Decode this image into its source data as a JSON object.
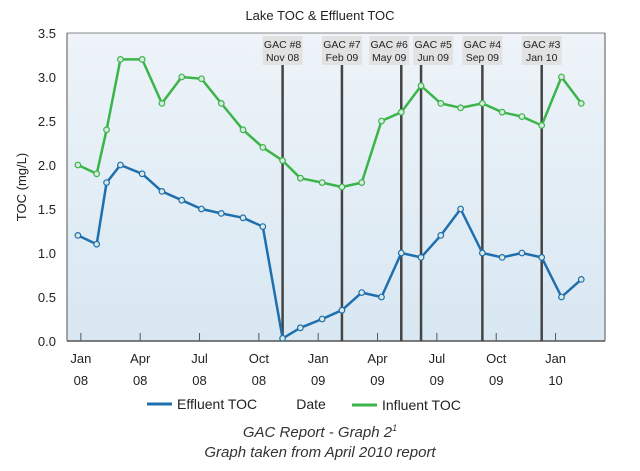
{
  "chart_data": {
    "type": "line",
    "title": "Lake TOC & Effluent TOC",
    "xlabel": "Date",
    "ylabel": "TOC (mg/L)",
    "ylim": [
      0,
      3.5
    ],
    "yticks": [
      "0.0",
      "0.5",
      "1.0",
      "1.5",
      "2.0",
      "2.5",
      "3.0",
      "3.5"
    ],
    "x_units": "months since Jan 2008",
    "xlim": [
      -0.7,
      26.5
    ],
    "xticks": [
      {
        "m": 0,
        "l1": "Jan",
        "l2": "08"
      },
      {
        "m": 3,
        "l1": "Apr",
        "l2": "08"
      },
      {
        "m": 6,
        "l1": "Jul",
        "l2": "08"
      },
      {
        "m": 9,
        "l1": "Oct",
        "l2": "08"
      },
      {
        "m": 12,
        "l1": "Jan",
        "l2": "09"
      },
      {
        "m": 15,
        "l1": "Apr",
        "l2": "09"
      },
      {
        "m": 18,
        "l1": "Jul",
        "l2": "09"
      },
      {
        "m": 21,
        "l1": "Oct",
        "l2": "09"
      },
      {
        "m": 24,
        "l1": "Jan",
        "l2": "10"
      }
    ],
    "x": [
      -0.15,
      0.8,
      1.3,
      2.0,
      3.1,
      4.1,
      5.1,
      6.1,
      7.1,
      8.2,
      9.2,
      10.2,
      11.1,
      12.2,
      13.2,
      14.2,
      15.2,
      16.2,
      17.2,
      18.2,
      19.2,
      20.3,
      21.3,
      22.3,
      23.3,
      24.3,
      25.3
    ],
    "series": [
      {
        "name": "Effluent TOC",
        "color": "#1f6fae",
        "values": [
          1.2,
          1.1,
          1.8,
          2.0,
          1.9,
          1.7,
          1.6,
          1.5,
          1.45,
          1.4,
          1.3,
          0.03,
          0.15,
          0.25,
          0.35,
          0.55,
          0.5,
          1.0,
          0.95,
          1.2,
          1.5,
          1.0,
          0.95,
          1.0,
          0.95,
          0.5,
          0.7
        ]
      },
      {
        "name": "Influent TOC",
        "color": "#3bb54a",
        "values": [
          2.0,
          1.9,
          2.4,
          3.2,
          3.2,
          2.7,
          3.0,
          2.98,
          2.7,
          2.4,
          2.2,
          2.05,
          1.85,
          1.8,
          1.75,
          1.8,
          2.5,
          2.6,
          2.9,
          2.7,
          2.65,
          2.7,
          2.6,
          2.55,
          2.45,
          3.0,
          2.7
        ]
      }
    ],
    "annotations": [
      {
        "m": 10.2,
        "l1": "GAC #8",
        "l2": "Nov 08"
      },
      {
        "m": 13.2,
        "l1": "GAC #7",
        "l2": "Feb 09"
      },
      {
        "m": 16.2,
        "l1": "GAC #6",
        "l2": "May 09"
      },
      {
        "m": 17.2,
        "l1": "GAC #5",
        "l2": "Jun 09"
      },
      {
        "m": 20.3,
        "l1": "GAC #4",
        "l2": "Sep 09"
      },
      {
        "m": 23.3,
        "l1": "GAC #3",
        "l2": "Jan 10"
      }
    ],
    "legend": "bottom",
    "grid": false
  },
  "caption": {
    "line1": "GAC Report - Graph 2",
    "sup": "1",
    "line2": "Graph taken from April 2010 report"
  }
}
